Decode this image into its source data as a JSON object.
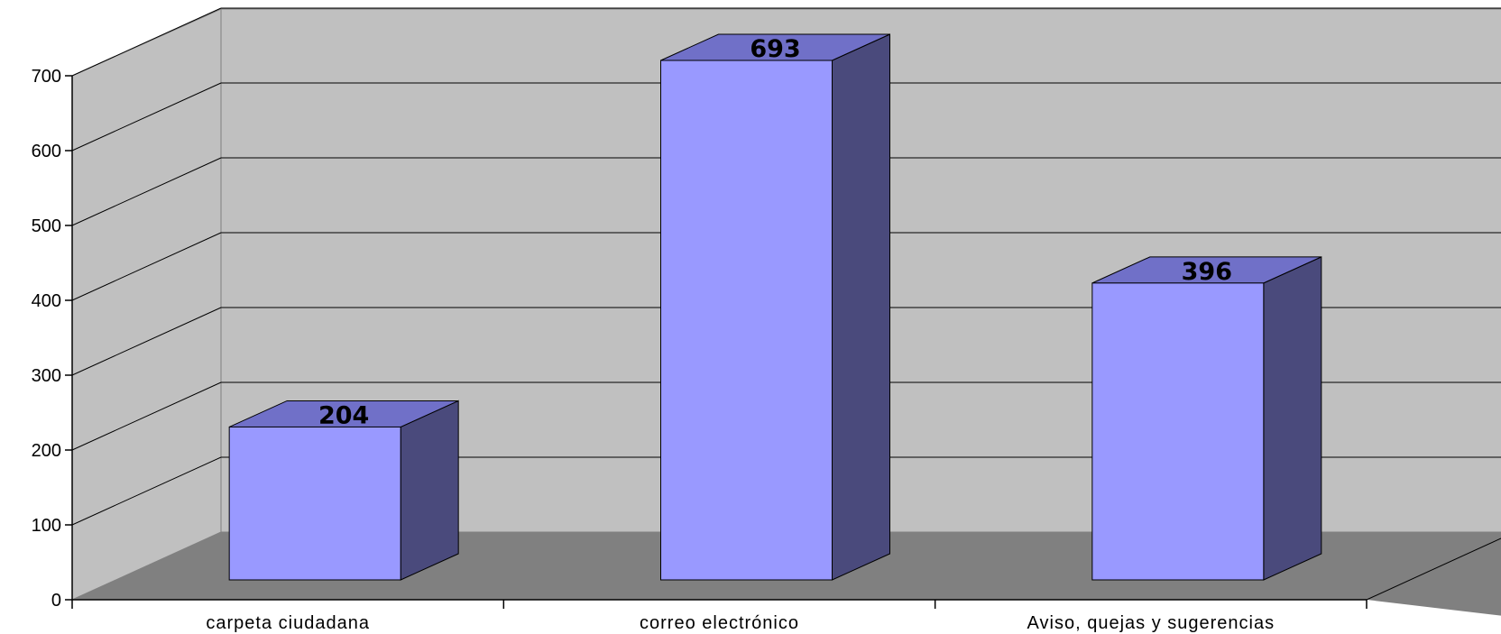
{
  "chart_data": {
    "type": "bar",
    "style": "3d-column",
    "categories": [
      "carpeta ciudadana",
      "correo electrónico",
      "Aviso, quejas y sugerencias"
    ],
    "values": [
      204,
      693,
      396
    ],
    "ylim": [
      0,
      700
    ],
    "yticks": [
      0,
      100,
      200,
      300,
      400,
      500,
      600,
      700
    ],
    "grid": true,
    "legend": "none",
    "colors": {
      "bar_front": "#9999ff",
      "bar_top": "#7070c8",
      "bar_side": "#4a4a7c",
      "back_wall": "#c0c0c0",
      "side_wall": "#c0c0c0",
      "floor": "#808080",
      "gridline": "#000000"
    }
  }
}
